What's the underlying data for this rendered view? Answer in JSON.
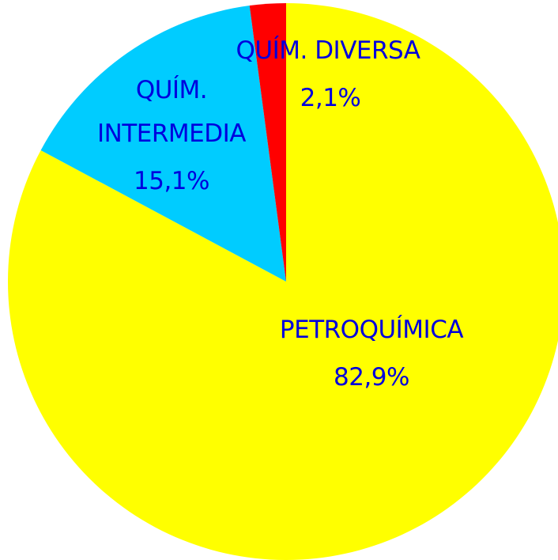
{
  "chart_data": {
    "type": "pie",
    "categories": [
      "PETROQUÍMICA",
      "QUÍM. INTERMEDIA",
      "QUÍM. DIVERSA"
    ],
    "values": [
      82.9,
      15.1,
      2.1
    ],
    "value_labels": [
      "82,9%",
      "15,1%",
      "2,1%"
    ],
    "colors": [
      "#ffff00",
      "#00ccff",
      "#ff0000"
    ]
  }
}
